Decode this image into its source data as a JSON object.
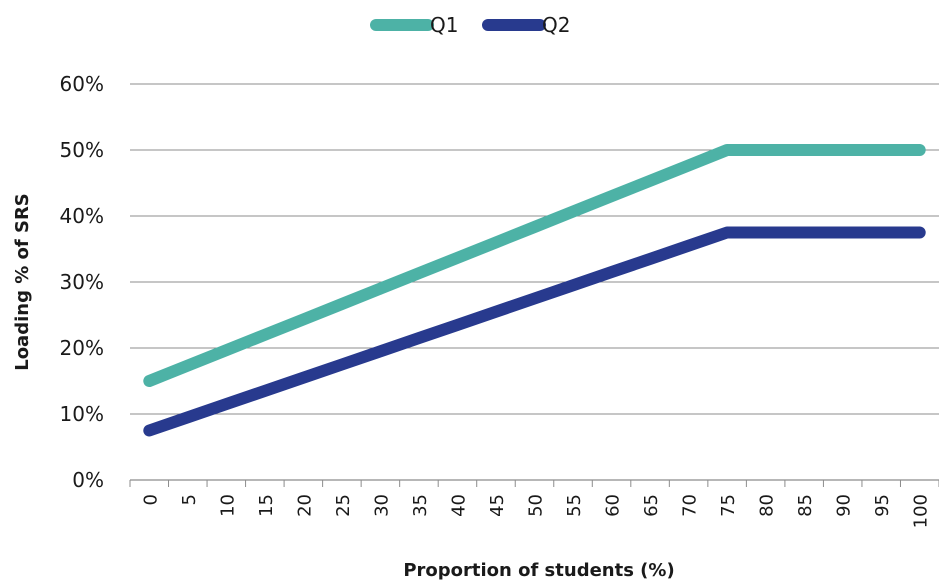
{
  "chart_data": {
    "type": "line",
    "xlabel": "Proportion of students (%)",
    "ylabel": "Loading % of SRS",
    "x": [
      0,
      5,
      10,
      15,
      20,
      25,
      30,
      35,
      40,
      45,
      50,
      55,
      60,
      65,
      70,
      75,
      80,
      85,
      90,
      95,
      100
    ],
    "x_tick_labels": [
      "0",
      "5",
      "10",
      "15",
      "20",
      "25",
      "30",
      "35",
      "40",
      "45",
      "50",
      "55",
      "60",
      "65",
      "70",
      "75",
      "80",
      "85",
      "90",
      "95",
      "100"
    ],
    "y_tick_labels": [
      "0%",
      "10%",
      "20%",
      "30%",
      "40%",
      "50%",
      "60%"
    ],
    "ylim": [
      0,
      60
    ],
    "grid": "horizontal",
    "legend_position": "top-center",
    "series": [
      {
        "name": "Q1",
        "color": "#4DB2A6",
        "values": [
          15,
          17.33,
          19.67,
          22,
          24.33,
          26.67,
          29,
          31.33,
          33.67,
          36,
          38.33,
          40.67,
          43,
          45.33,
          47.67,
          50,
          50,
          50,
          50,
          50,
          50
        ]
      },
      {
        "name": "Q2",
        "color": "#283A8E",
        "values": [
          7.5,
          9.5,
          11.5,
          13.5,
          15.5,
          17.5,
          19.5,
          21.5,
          23.5,
          25.5,
          27.5,
          29.5,
          31.5,
          33.5,
          35.5,
          37.5,
          37.5,
          37.5,
          37.5,
          37.5,
          37.5
        ]
      }
    ]
  }
}
